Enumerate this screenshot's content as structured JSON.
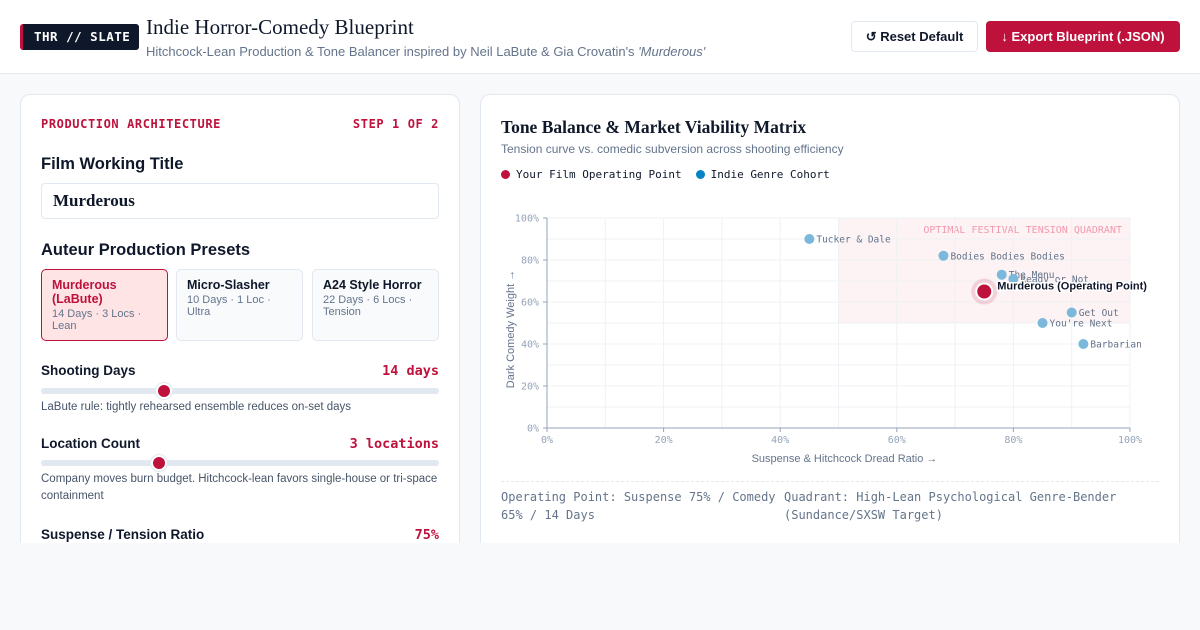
{
  "header": {
    "badge": "THR // SLATE",
    "title": "Indie Horror-Comedy Blueprint",
    "subtitle_prefix": "Hitchcock-Lean Production & Tone Balancer inspired by Neil LaBute & Gia Crovatin's ",
    "subtitle_emph": "'Murderous'",
    "reset_label": "↺ Reset Default",
    "export_label": "↓ Export Blueprint (.JSON)"
  },
  "left_panel": {
    "section_label": "PRODUCTION ARCHITECTURE",
    "step_label": "STEP 1 OF 2",
    "working_title_heading": "Film Working Title",
    "working_title_value": "Murderous",
    "presets_heading": "Auteur Production Presets",
    "presets": [
      {
        "name": "Murderous (LaBute)",
        "meta": "14 Days · 3 Locs · Lean",
        "active": true
      },
      {
        "name": "Micro-Slasher",
        "meta": "10 Days · 1 Loc · Ultra",
        "active": false
      },
      {
        "name": "A24 Style Horror",
        "meta": "22 Days · 6 Locs · Tension",
        "active": false
      }
    ],
    "sliders": [
      {
        "label": "Shooting Days",
        "value": "14 days",
        "level": 0.31,
        "help": "LaBute rule: tightly rehearsed ensemble reduces on-set days"
      },
      {
        "label": "Location Count",
        "value": "3 locations",
        "level": 0.297,
        "help": "Company moves burn budget. Hitchcock-lean favors single-house or tri-space containment"
      },
      {
        "label": "Suspense / Tension Ratio",
        "value": "75%",
        "level": 0.75,
        "help": ""
      }
    ]
  },
  "right_panel": {
    "title": "Tone Balance & Market Viability Matrix",
    "subtitle": "Tension curve vs. comedic subversion across shooting efficiency",
    "legend": [
      {
        "label": "Your Film Operating Point",
        "color": "#be123c"
      },
      {
        "label": "Indie Genre Cohort",
        "color": "#0284c7"
      }
    ],
    "footer_left": "Operating Point: Suspense 75% / Comedy 65% / 14 Days",
    "footer_right": "Quadrant: High-Lean Psychological Genre-Bender (Sundance/SXSW Target)"
  },
  "chart_data": {
    "type": "scatter",
    "xlabel": "Suspense & Hitchcock Dread Ratio →",
    "ylabel": "Dark Comedy Weight →",
    "xlim": [
      0,
      100
    ],
    "ylim": [
      0,
      100
    ],
    "x_ticks": [
      "0%",
      "20%",
      "40%",
      "60%",
      "80%",
      "100%"
    ],
    "y_ticks": [
      "0%",
      "20%",
      "40%",
      "60%",
      "80%",
      "100%"
    ],
    "grid": true,
    "highlight_region": {
      "label": "OPTIMAL FESTIVAL TENSION QUADRANT",
      "x": [
        50,
        100
      ],
      "y": [
        50,
        100
      ]
    },
    "operating_point": {
      "name": "Murderous (Operating Point)",
      "x": 75,
      "y": 65
    },
    "cohort": [
      {
        "name": "Tucker & Dale",
        "x": 45,
        "y": 90
      },
      {
        "name": "Bodies Bodies Bodies",
        "x": 68,
        "y": 82
      },
      {
        "name": "The Menu",
        "x": 78,
        "y": 73
      },
      {
        "name": "Ready or Not",
        "x": 80,
        "y": 71
      },
      {
        "name": "Get Out",
        "x": 90,
        "y": 55
      },
      {
        "name": "You're Next",
        "x": 85,
        "y": 50
      },
      {
        "name": "Barbarian",
        "x": 92,
        "y": 40
      }
    ],
    "colors": {
      "operating": "#be123c",
      "cohort": "#7ab8dc",
      "region": "#fdf2f4",
      "region_text": "#f19aad"
    }
  }
}
